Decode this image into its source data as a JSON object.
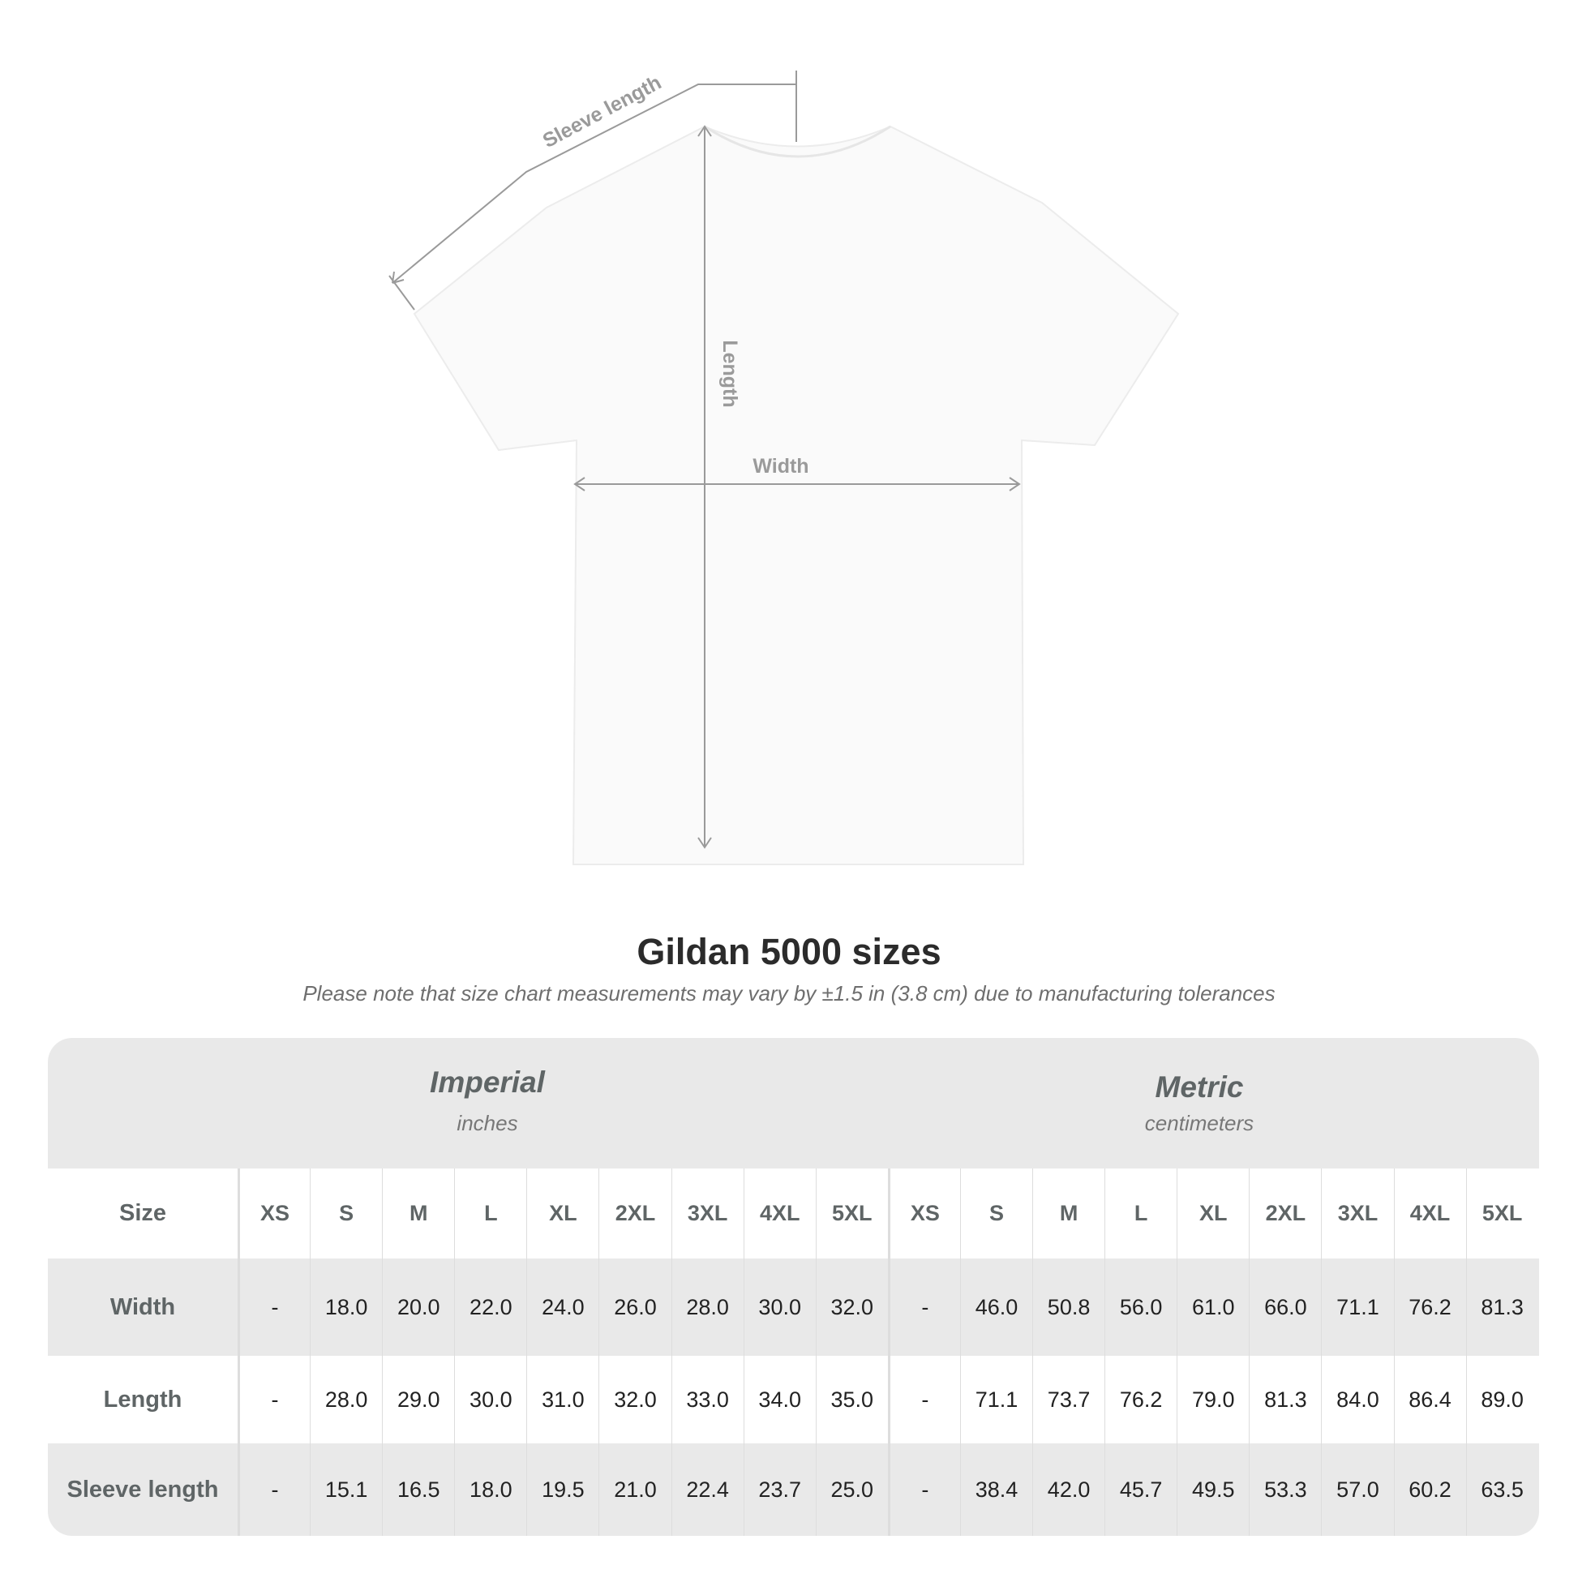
{
  "diagram": {
    "sleeve_label": "Sleeve length",
    "length_label": "Length",
    "width_label": "Width",
    "line_color": "#9a9a9a"
  },
  "title": "Gildan 5000 sizes",
  "note": "Please note that size chart measurements may vary by ±1.5 in (3.8 cm) due to manufacturing tolerances",
  "table": {
    "imperial": {
      "name": "Imperial",
      "unit": "inches"
    },
    "metric": {
      "name": "Metric",
      "unit": "centimeters"
    },
    "size_label": "Size",
    "sizes": [
      "XS",
      "S",
      "M",
      "L",
      "XL",
      "2XL",
      "3XL",
      "4XL",
      "5XL"
    ],
    "rows": [
      {
        "label": "Width",
        "imperial": [
          "-",
          "18.0",
          "20.0",
          "22.0",
          "24.0",
          "26.0",
          "28.0",
          "30.0",
          "32.0"
        ],
        "metric": [
          "-",
          "46.0",
          "50.8",
          "56.0",
          "61.0",
          "66.0",
          "71.1",
          "76.2",
          "81.3"
        ]
      },
      {
        "label": "Length",
        "imperial": [
          "-",
          "28.0",
          "29.0",
          "30.0",
          "31.0",
          "32.0",
          "33.0",
          "34.0",
          "35.0"
        ],
        "metric": [
          "-",
          "71.1",
          "73.7",
          "76.2",
          "79.0",
          "81.3",
          "84.0",
          "86.4",
          "89.0"
        ]
      },
      {
        "label": "Sleeve length",
        "imperial": [
          "-",
          "15.1",
          "16.5",
          "18.0",
          "19.5",
          "21.0",
          "22.4",
          "23.7",
          "25.0"
        ],
        "metric": [
          "-",
          "38.4",
          "42.0",
          "45.7",
          "49.5",
          "53.3",
          "57.0",
          "60.2",
          "63.5"
        ]
      }
    ]
  }
}
